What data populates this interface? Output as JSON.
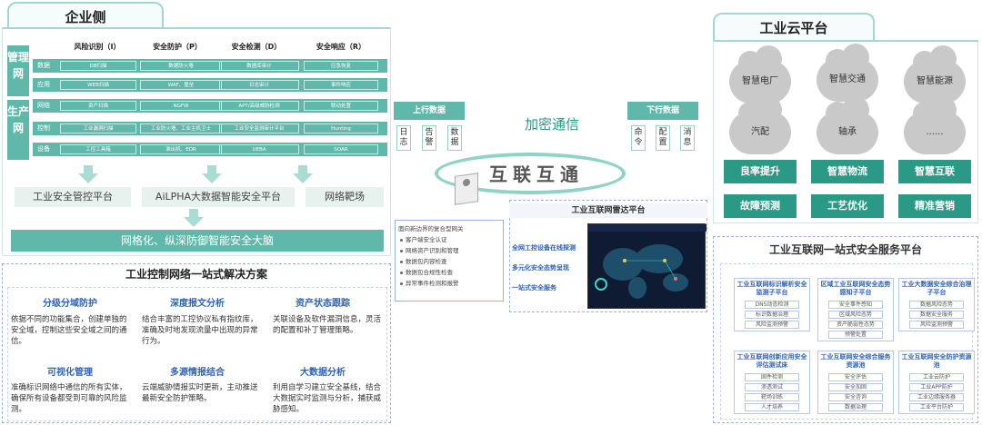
{
  "enterprise": {
    "title": "企业侧",
    "side_labels": [
      "管理网",
      "生产网"
    ],
    "columns": [
      "风险识别（I）",
      "安全防护（P）",
      "安全检测（D）",
      "安全响应（R）"
    ],
    "rows": [
      {
        "label": "数据",
        "cells": [
          "DB扫描",
          "数据防火墙",
          "数据库审计",
          "应急恢复"
        ]
      },
      {
        "label": "应用",
        "cells": [
          "WEB扫描",
          "WAF、堡垒",
          "日志审计",
          "事件响应"
        ]
      },
      {
        "label": "网络",
        "cells": [
          "资产扫描",
          "NGFW",
          "APT/高级威胁检测",
          "联动处置"
        ]
      },
      {
        "label": "控制",
        "cells": [
          "工业漏洞扫描",
          "工业防火墙、工业主机卫士",
          "工业安全监测审计平台",
          "Hunting"
        ]
      },
      {
        "label": "设备",
        "cells": [
          "工控工具箱",
          "准出机、EDR",
          "UEBA",
          "SOAR"
        ]
      }
    ],
    "platforms": [
      "工业安全管控平台",
      "AiLPHA大数据智能安全平台",
      "网络靶场"
    ],
    "brain": "网格化、纵深防御智能安全大脑"
  },
  "ics_solution": {
    "title": "工业控制网络一站式解决方案",
    "features": [
      {
        "title": "分级分域防护",
        "text": "依据不同的功能集合，创建单独的安全域，控制这些安全域之间的通信。"
      },
      {
        "title": "深度报文分析",
        "text": "结合丰富的工控协议私有指纹库，准确及时地发现流量中出现的异常行为。"
      },
      {
        "title": "资产状态跟踪",
        "text": "关联设备及软件漏洞信息，灵活的配置和补丁管理策略。"
      },
      {
        "title": "可视化管理",
        "text": "准确标识网络中通信的所有实体，确保所有设备都受到可靠的风险监测。"
      },
      {
        "title": "多源情报结合",
        "text": "云端威胁情报实时更新，主动推送最新安全防护策略。"
      },
      {
        "title": "大数据分析",
        "text": "利用自学习建立安全基线，结合大数据实时监测与分析，捕获威胁感知。"
      }
    ]
  },
  "center": {
    "encrypt": "加密通信",
    "internet": "互联互通",
    "uplink": {
      "title": "上行数据",
      "items": [
        "日志",
        "告警",
        "数据"
      ]
    },
    "downlink": {
      "title": "下行数据",
      "items": [
        "命令",
        "配置",
        "消息"
      ]
    },
    "gateway_list": [
      "面向新边界的复合型网关",
      "客户端安全认证",
      "网络资产识别和管理",
      "数据包内容检查",
      "数据包合规性检查",
      "异常事件检测和报警"
    ],
    "radar": {
      "title": "工业互联网雷达平台",
      "items": [
        "全网工控设备在线探测",
        "多元化安全态势呈现",
        "一站式安全服务"
      ]
    }
  },
  "cloud": {
    "title": "工业云平台",
    "clouds": [
      "智慧电厂",
      "智慧交通",
      "智慧能源",
      "汽配",
      "轴承",
      "......"
    ],
    "buttons": [
      "良率提升",
      "智慧物流",
      "智慧互联",
      "故障预测",
      "工艺优化",
      "精准营销"
    ]
  },
  "service_platform": {
    "title": "工业互联网一站式安全服务平台",
    "modules": [
      {
        "title": "工业互联网标识解析安全监测子平台",
        "items": [
          "DNS动态检测",
          "标识数据治理",
          "风险监测预警"
        ]
      },
      {
        "title": "区域工业互联网安全态势感知子平台",
        "items": [
          "安全事件感知",
          "区域风险态势",
          "资产脆弱性态势",
          "预警处置"
        ]
      },
      {
        "title": "工业大数据安全综合治理子平台",
        "items": [
          "数据风险态势",
          "数据安全服务",
          "风险监测预警"
        ]
      },
      {
        "title": "工业互联网创新应用安全评估测试床",
        "items": [
          "固件检测",
          "渗透测试",
          "靶场训练",
          "人才培养"
        ]
      },
      {
        "title": "工业互联网安全综合服务资源池",
        "items": [
          "安全评估",
          "安全加固",
          "安全咨询",
          "数据治理"
        ]
      },
      {
        "title": "工业互联网安全防护资源池",
        "items": [
          "工业云防护",
          "工业APP防护",
          "工业边缘服务器",
          "工业平台防护"
        ]
      }
    ]
  },
  "colors": {
    "teal": "#5fb8aa",
    "dark_teal": "#2a9a86",
    "blue": "#2f63b5",
    "light_teal_bg": "#e7f1ee"
  }
}
